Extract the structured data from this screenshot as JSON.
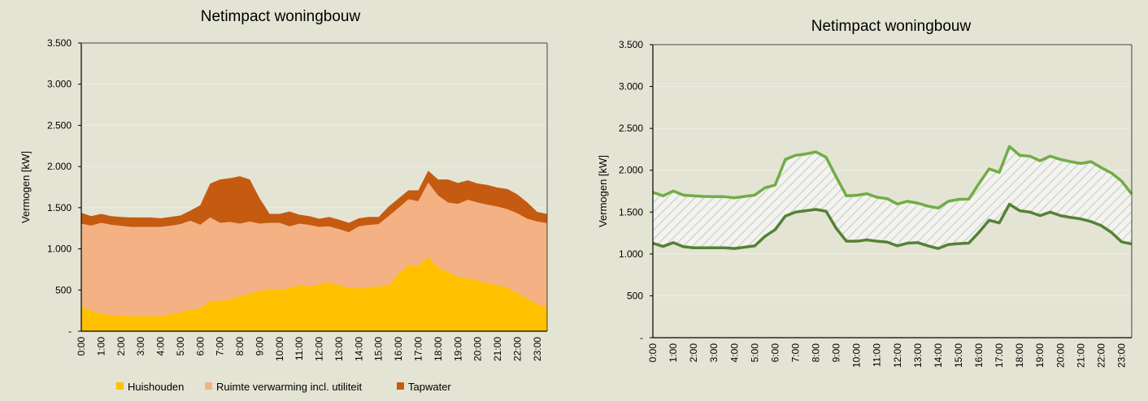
{
  "chart_data": [
    {
      "type": "area",
      "stacked": true,
      "title": "Netimpact woningbouw",
      "xlabel": "",
      "ylabel": "Vermogen [kW]",
      "ylim": [
        0,
        3500
      ],
      "ytick_labels": [
        "-",
        "500",
        "1.000",
        "1.500",
        "2.000",
        "2.500",
        "3.000",
        "3.500"
      ],
      "xtick_labels": [
        "0:00",
        "1:00",
        "2:00",
        "3:00",
        "4:00",
        "5:00",
        "6:00",
        "7:00",
        "8:00",
        "9:00",
        "10:00",
        "11:00",
        "12:00",
        "13:00",
        "14:00",
        "15:00",
        "16:00",
        "17:00",
        "18:00",
        "19:00",
        "20:00",
        "21:00",
        "22:00",
        "23:00"
      ],
      "x": [
        "0:00",
        "0:30",
        "1:00",
        "1:30",
        "2:00",
        "2:30",
        "3:00",
        "3:30",
        "4:00",
        "4:30",
        "5:00",
        "5:30",
        "6:00",
        "6:30",
        "7:00",
        "7:30",
        "8:00",
        "8:30",
        "9:00",
        "9:30",
        "10:00",
        "10:30",
        "11:00",
        "11:30",
        "12:00",
        "12:30",
        "13:00",
        "13:30",
        "14:00",
        "14:30",
        "15:00",
        "15:30",
        "16:00",
        "16:30",
        "17:00",
        "17:30",
        "18:00",
        "18:30",
        "19:00",
        "19:30",
        "20:00",
        "20:30",
        "21:00",
        "21:30",
        "22:00",
        "22:30",
        "23:00",
        "23:30"
      ],
      "grid": true,
      "legend": "bottom",
      "series": [
        {
          "name": "Huishouden",
          "color": "#ffc000",
          "values": [
            296,
            253,
            214,
            197,
            188,
            184,
            184,
            184,
            184,
            207,
            230,
            263,
            280,
            368,
            368,
            388,
            428,
            454,
            494,
            503,
            503,
            526,
            559,
            543,
            569,
            595,
            559,
            526,
            520,
            536,
            543,
            559,
            691,
            806,
            790,
            905,
            773,
            724,
            658,
            642,
            615,
            582,
            559,
            526,
            461,
            395,
            329,
            296
          ]
        },
        {
          "name": "Ruimte verwarming incl. utiliteit",
          "color": "#f4b183",
          "values": [
            1010,
            1030,
            1102,
            1096,
            1092,
            1083,
            1083,
            1083,
            1083,
            1073,
            1070,
            1079,
            1013,
            1014,
            948,
            938,
            878,
            878,
            812,
            813,
            813,
            747,
            747,
            747,
            698,
            678,
            681,
            675,
            753,
            754,
            757,
            839,
            806,
            796,
            789,
            901,
            875,
            839,
            888,
            954,
            948,
            954,
            954,
            955,
            970,
            970,
            1003,
            1017
          ]
        },
        {
          "name": "Tapwater",
          "color": "#c55a11",
          "values": [
            132,
            115,
            109,
            105,
            108,
            115,
            115,
            115,
            105,
            108,
            105,
            122,
            237,
            411,
            526,
            533,
            576,
            510,
            306,
            109,
            109,
            181,
            109,
            108,
            98,
            115,
            115,
            115,
            99,
            98,
            88,
            115,
            115,
            108,
            131,
            142,
            194,
            279,
            254,
            236,
            230,
            240,
            231,
            246,
            230,
            198,
            116,
            112
          ]
        }
      ]
    },
    {
      "type": "line",
      "title": "Netimpact woningbouw",
      "xlabel": "",
      "ylabel": "Vermogen [kW]",
      "ylim": [
        0,
        3500
      ],
      "ytick_labels": [
        "-",
        "500",
        "1.000",
        "1.500",
        "2.000",
        "2.500",
        "3.000",
        "3.500"
      ],
      "xtick_labels": [
        "0:00",
        "1:00",
        "2:00",
        "3:00",
        "4:00",
        "5:00",
        "6:00",
        "7:00",
        "8:00",
        "9:00",
        "10:00",
        "11:00",
        "12:00",
        "13:00",
        "14:00",
        "15:00",
        "16:00",
        "17:00",
        "18:00",
        "19:00",
        "20:00",
        "21:00",
        "22:00",
        "23:00"
      ],
      "x": [
        "0:00",
        "0:30",
        "1:00",
        "1:30",
        "2:00",
        "2:30",
        "3:00",
        "3:30",
        "4:00",
        "4:30",
        "5:00",
        "5:30",
        "6:00",
        "6:30",
        "7:00",
        "7:30",
        "8:00",
        "8:30",
        "9:00",
        "9:30",
        "10:00",
        "10:30",
        "11:00",
        "11:30",
        "12:00",
        "12:30",
        "13:00",
        "13:30",
        "14:00",
        "14:30",
        "15:00",
        "15:30",
        "16:00",
        "16:30",
        "17:00",
        "17:30",
        "18:00",
        "18:30",
        "19:00",
        "19:30",
        "20:00",
        "20:30",
        "21:00",
        "21:30",
        "22:00",
        "22:30",
        "23:00",
        "23:30"
      ],
      "grid": true,
      "band_fill": "hatched",
      "series": [
        {
          "color": "#70ad47",
          "values": [
            1736,
            1694,
            1752,
            1703,
            1694,
            1687,
            1684,
            1684,
            1671,
            1687,
            1703,
            1790,
            1823,
            2129,
            2178,
            2194,
            2219,
            2155,
            1919,
            1694,
            1700,
            1720,
            1677,
            1661,
            1597,
            1629,
            1607,
            1571,
            1548,
            1629,
            1652,
            1655,
            1839,
            2016,
            1974,
            2284,
            2178,
            2168,
            2113,
            2168,
            2129,
            2103,
            2081,
            2103,
            2032,
            1968,
            1871,
            1716
          ]
        },
        {
          "color": "#548235",
          "values": [
            1129,
            1090,
            1135,
            1087,
            1074,
            1074,
            1074,
            1074,
            1065,
            1081,
            1097,
            1210,
            1290,
            1452,
            1500,
            1516,
            1532,
            1510,
            1306,
            1152,
            1152,
            1168,
            1152,
            1142,
            1097,
            1129,
            1135,
            1097,
            1065,
            1113,
            1123,
            1129,
            1258,
            1403,
            1371,
            1594,
            1516,
            1500,
            1458,
            1500,
            1458,
            1436,
            1419,
            1387,
            1339,
            1258,
            1145,
            1119
          ]
        }
      ]
    }
  ]
}
